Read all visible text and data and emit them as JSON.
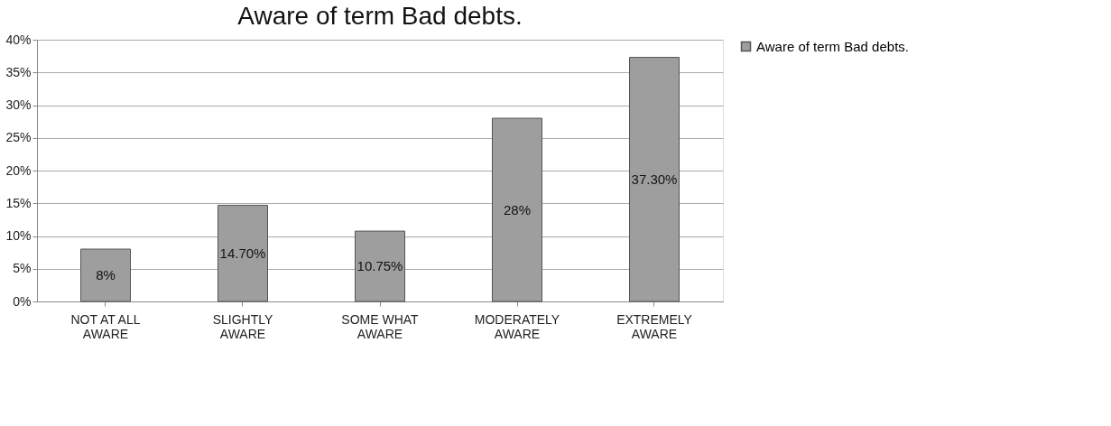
{
  "chart_data": {
    "type": "bar",
    "title": "Aware of term Bad debts.",
    "categories": [
      "NOT AT ALL AWARE",
      "SLIGHTLY AWARE",
      "SOME WHAT AWARE",
      "MODERATELY AWARE",
      "EXTREMELY AWARE"
    ],
    "series": [
      {
        "name": "Aware of term Bad debts.",
        "color": "#9e9e9e",
        "values": [
          8,
          14.7,
          10.75,
          28,
          37.3
        ],
        "value_labels": [
          "8%",
          "14.70%",
          "10.75%",
          "28%",
          "37.30%"
        ]
      }
    ],
    "ylim": [
      0,
      40
    ],
    "yticks": [
      {
        "value": 0,
        "label": "0%"
      },
      {
        "value": 5,
        "label": "5%"
      },
      {
        "value": 10,
        "label": "10%"
      },
      {
        "value": 15,
        "label": "15%"
      },
      {
        "value": 20,
        "label": "20%"
      },
      {
        "value": 25,
        "label": "25%"
      },
      {
        "value": 30,
        "label": "30%"
      },
      {
        "value": 35,
        "label": "35%"
      },
      {
        "value": 40,
        "label": "40%"
      }
    ],
    "grid": "y",
    "legend": "right"
  }
}
